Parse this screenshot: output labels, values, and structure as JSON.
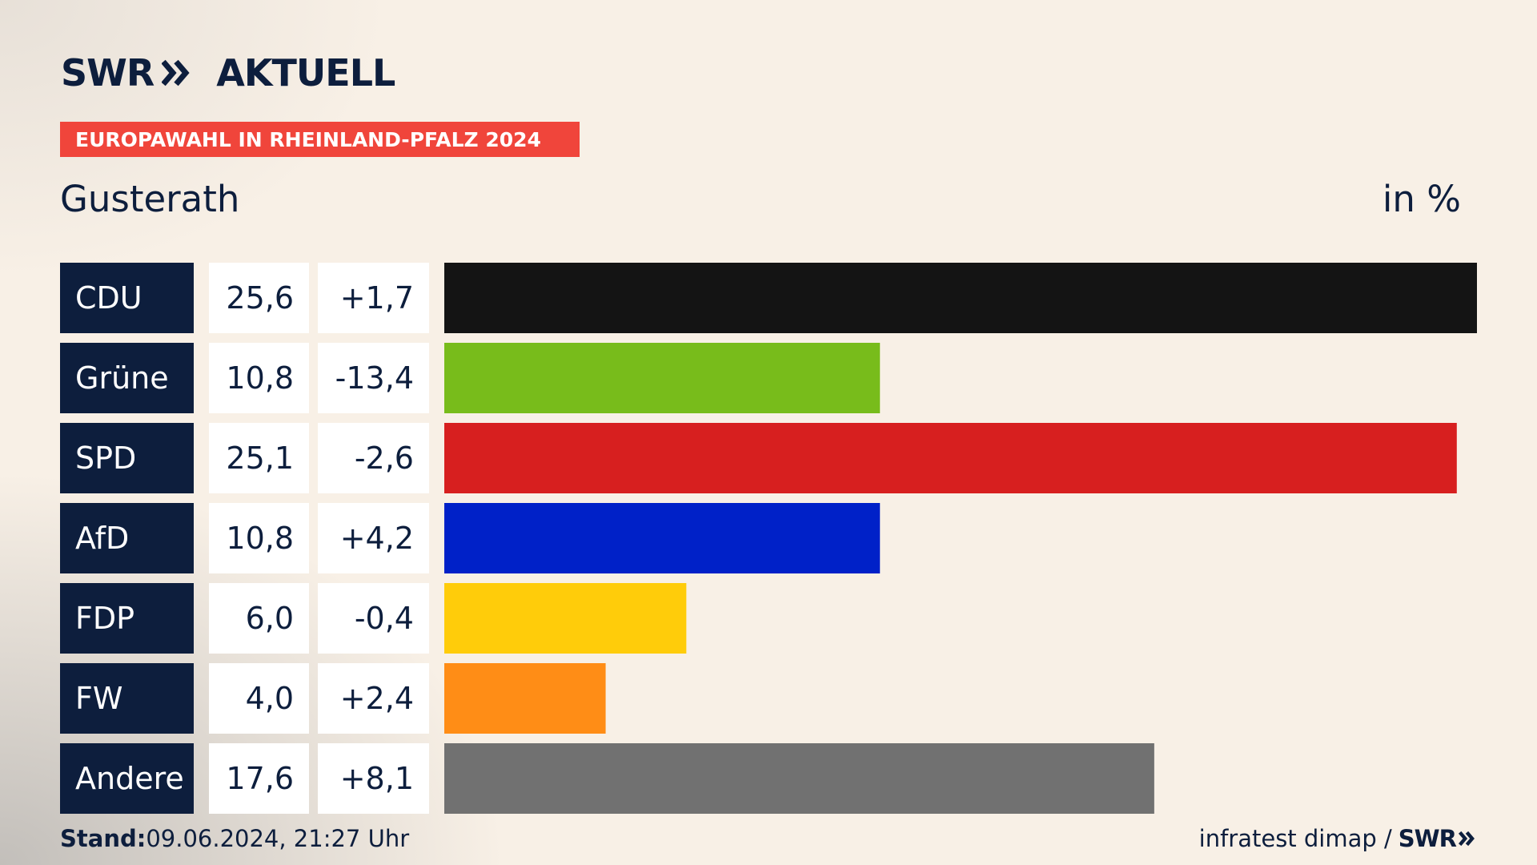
{
  "header": {
    "logo_text": "SWR",
    "logo_suffix": "AKTUELL",
    "topic": "EUROPAWAHL IN RHEINLAND-PFALZ 2024",
    "place": "Gusterath",
    "unit_label": "in %"
  },
  "footer": {
    "stand_label": "Stand:",
    "stand_value": "09.06.2024, 21:27 Uhr",
    "source": "infratest dimap /",
    "source_brand": "SWR"
  },
  "colors": {
    "label_bg": "#0d1e3d",
    "accent": "#f0453b"
  },
  "chart_data": {
    "type": "bar",
    "title": "Gusterath",
    "unit": "in %",
    "categories": [
      "CDU",
      "Grüne",
      "SPD",
      "AfD",
      "FDP",
      "FW",
      "Andere"
    ],
    "values": [
      25.6,
      10.8,
      25.1,
      10.8,
      6.0,
      4.0,
      17.6
    ],
    "value_labels": [
      "25,6",
      "10,8",
      "25,1",
      "10,8",
      "6,0",
      "4,0",
      "17,6"
    ],
    "change_labels": [
      "+1,7",
      "-13,4",
      "-2,6",
      "+4,2",
      "-0,4",
      "+2,4",
      "+8,1"
    ],
    "bar_colors": [
      "#141414",
      "#78bc1b",
      "#d71f1f",
      "#0021c8",
      "#ffcc0a",
      "#ff8d16",
      "#717171"
    ],
    "xlim": [
      0,
      25.6
    ]
  }
}
